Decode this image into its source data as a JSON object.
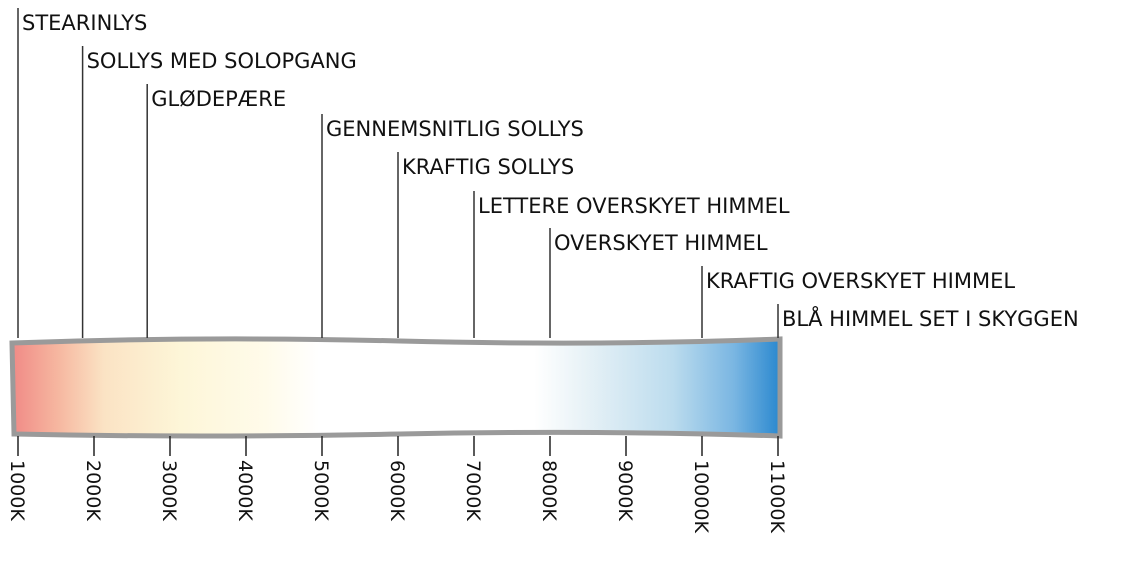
{
  "scale": {
    "range": [
      1000,
      11000
    ],
    "ticks": [
      {
        "value": 1000,
        "label": "1000K"
      },
      {
        "value": 2000,
        "label": "2000K"
      },
      {
        "value": 3000,
        "label": "3000K"
      },
      {
        "value": 4000,
        "label": "4000K"
      },
      {
        "value": 5000,
        "label": "5000K"
      },
      {
        "value": 6000,
        "label": "6000K"
      },
      {
        "value": 7000,
        "label": "7000K"
      },
      {
        "value": 8000,
        "label": "8000K"
      },
      {
        "value": 9000,
        "label": "9000K"
      },
      {
        "value": 10000,
        "label": "10000K"
      },
      {
        "value": 11000,
        "label": "11000K"
      }
    ]
  },
  "markers": [
    {
      "label": "STEARINLYS",
      "value": 1000
    },
    {
      "label": "SOLLYS MED SOLOPGANG",
      "value": 1850
    },
    {
      "label": "GLØDEPÆRE",
      "value": 2700
    },
    {
      "label": "GENNEMSNITLIG SOLLYS",
      "value": 5000
    },
    {
      "label": "KRAFTIG SOLLYS",
      "value": 6000
    },
    {
      "label": "LETTERE OVERSKYET HIMMEL",
      "value": 7000
    },
    {
      "label": "OVERSKYET HIMMEL",
      "value": 8000
    },
    {
      "label": "KRAFTIG OVERSKYET HIMMEL",
      "value": 10000
    },
    {
      "label": "BLÅ HIMMEL SET I SKYGGEN",
      "value": 11000
    }
  ]
}
